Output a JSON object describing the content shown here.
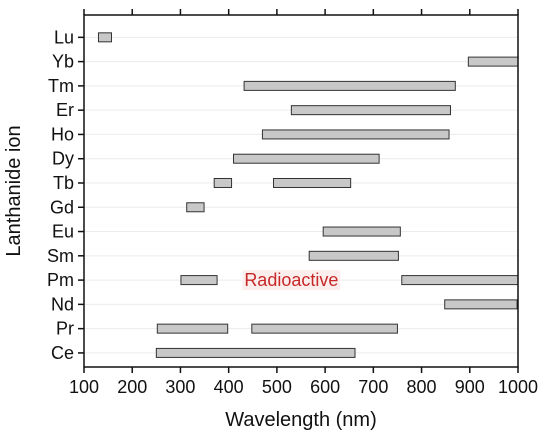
{
  "chart_data": {
    "type": "bar",
    "orientation": "horizontal-range",
    "xlabel": "Wavelength (nm)",
    "ylabel": "Lanthanide ion",
    "xlim": [
      100,
      1000
    ],
    "xticks": [
      100,
      200,
      300,
      400,
      500,
      600,
      700,
      800,
      900,
      1000
    ],
    "grid": true,
    "categories": [
      "Lu",
      "Yb",
      "Tm",
      "Er",
      "Ho",
      "Dy",
      "Tb",
      "Gd",
      "Eu",
      "Sm",
      "Pm",
      "Nd",
      "Pr",
      "Ce"
    ],
    "ranges": [
      {
        "ion": "Lu",
        "start": 130,
        "end": 157
      },
      {
        "ion": "Yb",
        "start": 897,
        "end": 1000
      },
      {
        "ion": "Tm",
        "start": 432,
        "end": 870
      },
      {
        "ion": "Er",
        "start": 530,
        "end": 860
      },
      {
        "ion": "Ho",
        "start": 470,
        "end": 857
      },
      {
        "ion": "Dy",
        "start": 410,
        "end": 712
      },
      {
        "ion": "Tb",
        "start": 370,
        "end": 406
      },
      {
        "ion": "Tb",
        "start": 493,
        "end": 653
      },
      {
        "ion": "Gd",
        "start": 313,
        "end": 349
      },
      {
        "ion": "Eu",
        "start": 596,
        "end": 756
      },
      {
        "ion": "Sm",
        "start": 567,
        "end": 752
      },
      {
        "ion": "Pm",
        "start": 301,
        "end": 376
      },
      {
        "ion": "Pm",
        "start": 759,
        "end": 1000
      },
      {
        "ion": "Nd",
        "start": 848,
        "end": 998
      },
      {
        "ion": "Pr",
        "start": 252,
        "end": 398
      },
      {
        "ion": "Pr",
        "start": 448,
        "end": 750
      },
      {
        "ion": "Ce",
        "start": 250,
        "end": 662
      }
    ],
    "annotations": [
      {
        "text": "Radioactive",
        "x": 530,
        "category": "Pm"
      }
    ],
    "colors": {
      "bar_fill": "#c8c8c8",
      "bar_stroke": "#333333",
      "axis": "#111111",
      "grid": "#ececec",
      "annotation_text": "#c62828",
      "annotation_bg": "#fdeeee"
    }
  }
}
